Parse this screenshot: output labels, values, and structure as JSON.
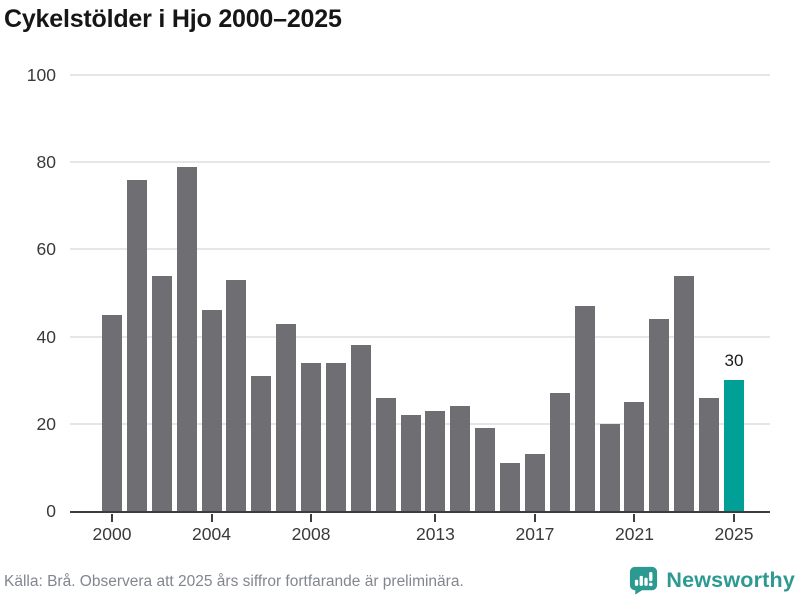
{
  "title": "Cykelstölder i Hjo 2000–2025",
  "chart_data": {
    "type": "bar",
    "title": "Cykelstölder i Hjo 2000–2025",
    "categories": [
      2000,
      2001,
      2002,
      2003,
      2004,
      2005,
      2006,
      2007,
      2008,
      2009,
      2010,
      2011,
      2012,
      2013,
      2014,
      2015,
      2016,
      2017,
      2018,
      2019,
      2020,
      2021,
      2022,
      2023,
      2024,
      2025
    ],
    "values": [
      45,
      76,
      54,
      79,
      46,
      53,
      31,
      43,
      34,
      34,
      38,
      26,
      22,
      23,
      24,
      19,
      11,
      13,
      27,
      47,
      20,
      25,
      44,
      54,
      26,
      30
    ],
    "xlabel": "",
    "ylabel": "",
    "ylim": [
      0,
      100
    ],
    "yticks": [
      0,
      20,
      40,
      60,
      80,
      100
    ],
    "xtick_years": [
      2000,
      2004,
      2008,
      2013,
      2017,
      2021,
      2025
    ],
    "grid": true,
    "legend": "none",
    "bar_color": "#6f6e73",
    "highlight_year": 2025,
    "highlight_color": "#00a096",
    "highlight_value_label": "30"
  },
  "footer": {
    "source_text": "Källa: Brå. Observera att 2025 års siffror fortfarande är preliminära.",
    "brand": "Newsworthy"
  },
  "colors": {
    "title_text": "#161616",
    "axis_line": "#3d3d3f",
    "gridline": "#e6e6e6",
    "tick_label": "#3a3a3a",
    "source_text": "#82868f",
    "brand_teal": "#2d9a92"
  }
}
